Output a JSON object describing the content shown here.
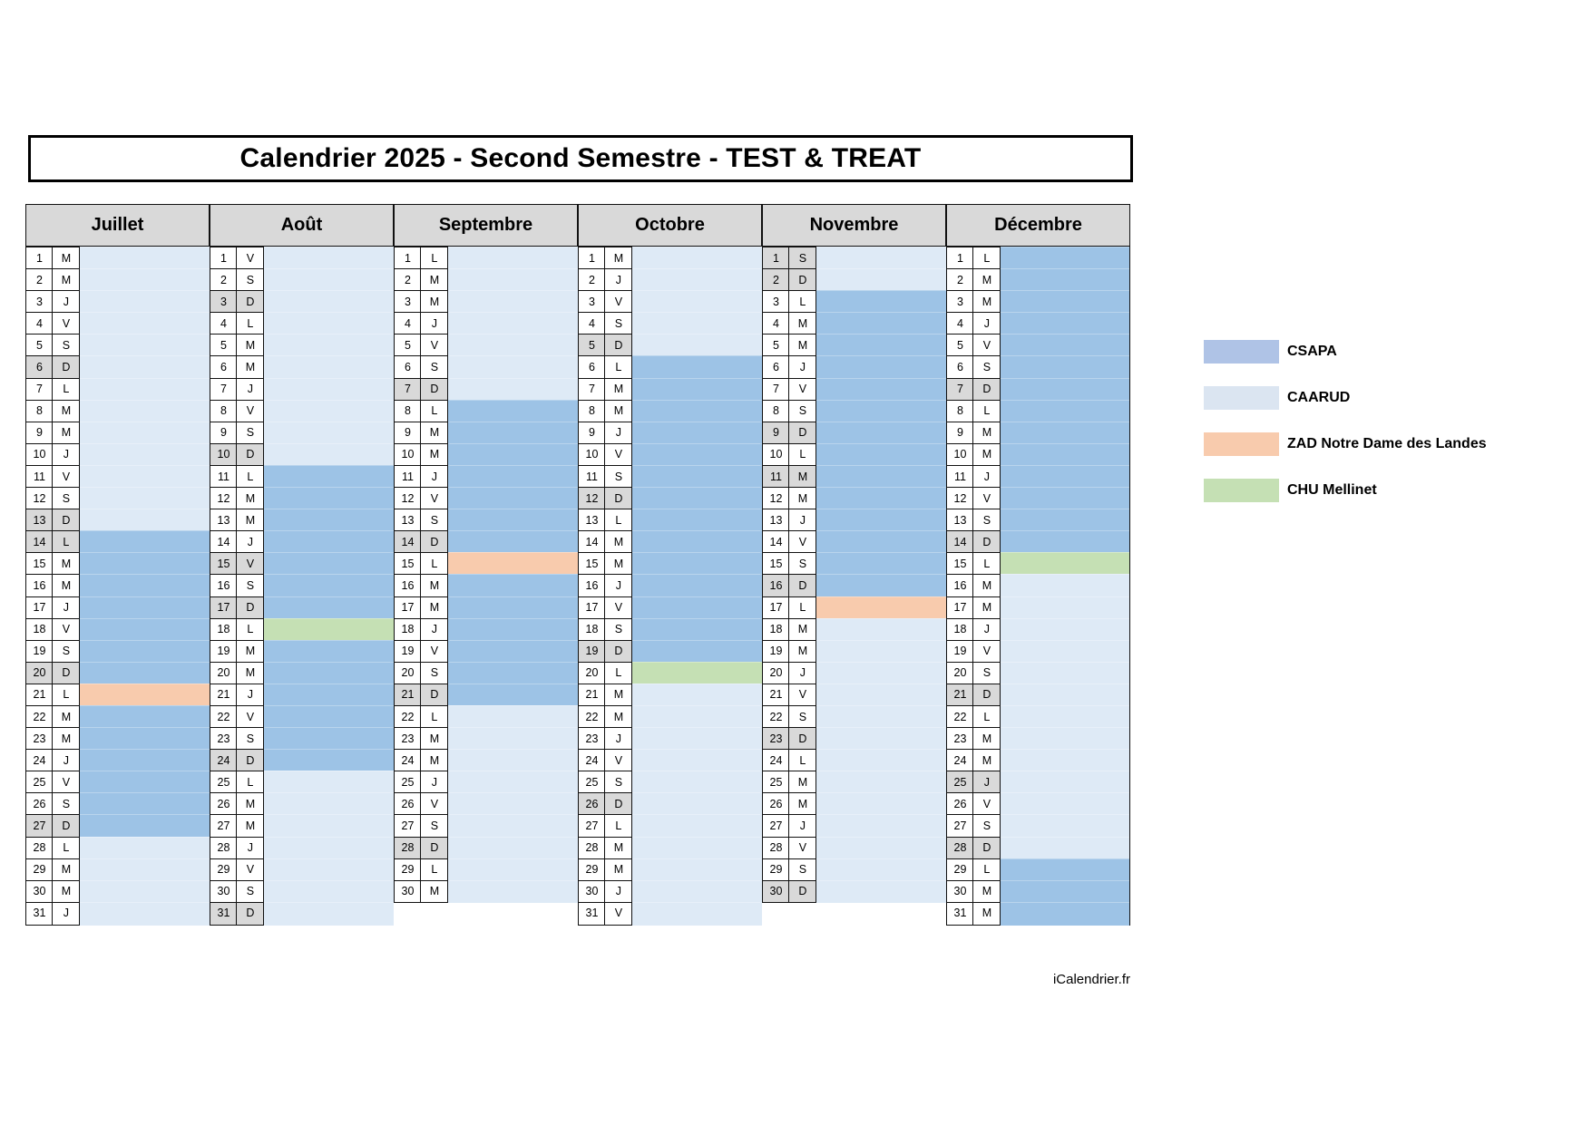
{
  "title": "Calendrier 2025 - Second Semestre - TEST & TREAT",
  "footer": "iCalendrier.fr",
  "colors": {
    "weekend_gray": "#d9d9d9",
    "header_bg": "#d9d9d9",
    "border": "#111111"
  },
  "highlight_colors": {
    "csapa": "#9dc3e6",
    "caarud": "#deeaf6",
    "zad": "#f8cbad",
    "chu": "#c5e0b4"
  },
  "legend": {
    "items": [
      {
        "label": "CSAPA",
        "color": "#afc3e6"
      },
      {
        "label": "CAARUD",
        "color": "#dbe5f1"
      },
      {
        "label": "ZAD Notre Dame des Landes",
        "color": "#f8cbad"
      },
      {
        "label": "CHU Mellinet",
        "color": "#c5e0b4"
      }
    ]
  },
  "months": [
    {
      "name": "Juillet",
      "days": 31,
      "letters": [
        "M",
        "M",
        "J",
        "V",
        "S",
        "D",
        "L",
        "M",
        "M",
        "J",
        "V",
        "S",
        "D",
        "L",
        "M",
        "M",
        "J",
        "V",
        "S",
        "D",
        "L",
        "M",
        "M",
        "J",
        "V",
        "S",
        "D",
        "L",
        "M",
        "M",
        "J"
      ],
      "gray_days": [
        6,
        13,
        14,
        20,
        27
      ],
      "highlights": [
        {
          "from": 1,
          "to": 13,
          "type": "caarud"
        },
        {
          "from": 14,
          "to": 20,
          "type": "csapa"
        },
        {
          "from": 21,
          "to": 21,
          "type": "zad"
        },
        {
          "from": 22,
          "to": 27,
          "type": "csapa"
        },
        {
          "from": 28,
          "to": 31,
          "type": "caarud"
        }
      ]
    },
    {
      "name": "Août",
      "days": 31,
      "letters": [
        "V",
        "S",
        "D",
        "L",
        "M",
        "M",
        "J",
        "V",
        "S",
        "D",
        "L",
        "M",
        "M",
        "J",
        "V",
        "S",
        "D",
        "L",
        "M",
        "M",
        "J",
        "V",
        "S",
        "D",
        "L",
        "M",
        "M",
        "J",
        "V",
        "S",
        "D"
      ],
      "gray_days": [
        3,
        10,
        15,
        17,
        24,
        31
      ],
      "highlights": [
        {
          "from": 1,
          "to": 10,
          "type": "caarud"
        },
        {
          "from": 11,
          "to": 17,
          "type": "csapa"
        },
        {
          "from": 18,
          "to": 18,
          "type": "chu"
        },
        {
          "from": 19,
          "to": 24,
          "type": "csapa"
        },
        {
          "from": 25,
          "to": 31,
          "type": "caarud"
        }
      ]
    },
    {
      "name": "Septembre",
      "days": 30,
      "letters": [
        "L",
        "M",
        "M",
        "J",
        "V",
        "S",
        "D",
        "L",
        "M",
        "M",
        "J",
        "V",
        "S",
        "D",
        "L",
        "M",
        "M",
        "J",
        "V",
        "S",
        "D",
        "L",
        "M",
        "M",
        "J",
        "V",
        "S",
        "D",
        "L",
        "M"
      ],
      "gray_days": [
        7,
        14,
        21,
        28
      ],
      "highlights": [
        {
          "from": 1,
          "to": 7,
          "type": "caarud"
        },
        {
          "from": 8,
          "to": 14,
          "type": "csapa"
        },
        {
          "from": 15,
          "to": 15,
          "type": "zad"
        },
        {
          "from": 16,
          "to": 21,
          "type": "csapa"
        },
        {
          "from": 22,
          "to": 30,
          "type": "caarud"
        }
      ]
    },
    {
      "name": "Octobre",
      "days": 31,
      "letters": [
        "M",
        "J",
        "V",
        "S",
        "D",
        "L",
        "M",
        "M",
        "J",
        "V",
        "S",
        "D",
        "L",
        "M",
        "M",
        "J",
        "V",
        "S",
        "D",
        "L",
        "M",
        "M",
        "J",
        "V",
        "S",
        "D",
        "L",
        "M",
        "M",
        "J",
        "V"
      ],
      "gray_days": [
        5,
        12,
        19,
        26
      ],
      "highlights": [
        {
          "from": 1,
          "to": 5,
          "type": "caarud"
        },
        {
          "from": 6,
          "to": 19,
          "type": "csapa"
        },
        {
          "from": 20,
          "to": 20,
          "type": "chu"
        },
        {
          "from": 21,
          "to": 31,
          "type": "caarud"
        }
      ]
    },
    {
      "name": "Novembre",
      "days": 30,
      "letters": [
        "S",
        "D",
        "L",
        "M",
        "M",
        "J",
        "V",
        "S",
        "D",
        "L",
        "M",
        "M",
        "J",
        "V",
        "S",
        "D",
        "L",
        "M",
        "M",
        "J",
        "V",
        "S",
        "D",
        "L",
        "M",
        "M",
        "J",
        "V",
        "S",
        "D"
      ],
      "gray_days": [
        1,
        2,
        9,
        11,
        16,
        23,
        30
      ],
      "highlights": [
        {
          "from": 1,
          "to": 2,
          "type": "caarud"
        },
        {
          "from": 3,
          "to": 16,
          "type": "csapa"
        },
        {
          "from": 17,
          "to": 17,
          "type": "zad"
        },
        {
          "from": 18,
          "to": 30,
          "type": "caarud"
        }
      ]
    },
    {
      "name": "Décembre",
      "days": 31,
      "letters": [
        "L",
        "M",
        "M",
        "J",
        "V",
        "S",
        "D",
        "L",
        "M",
        "M",
        "J",
        "V",
        "S",
        "D",
        "L",
        "M",
        "M",
        "J",
        "V",
        "S",
        "D",
        "L",
        "M",
        "M",
        "J",
        "V",
        "S",
        "D",
        "L",
        "M",
        "M"
      ],
      "gray_days": [
        7,
        14,
        21,
        25,
        28
      ],
      "highlights": [
        {
          "from": 1,
          "to": 14,
          "type": "csapa"
        },
        {
          "from": 15,
          "to": 15,
          "type": "chu"
        },
        {
          "from": 16,
          "to": 28,
          "type": "caarud"
        },
        {
          "from": 29,
          "to": 31,
          "type": "csapa"
        }
      ]
    }
  ]
}
